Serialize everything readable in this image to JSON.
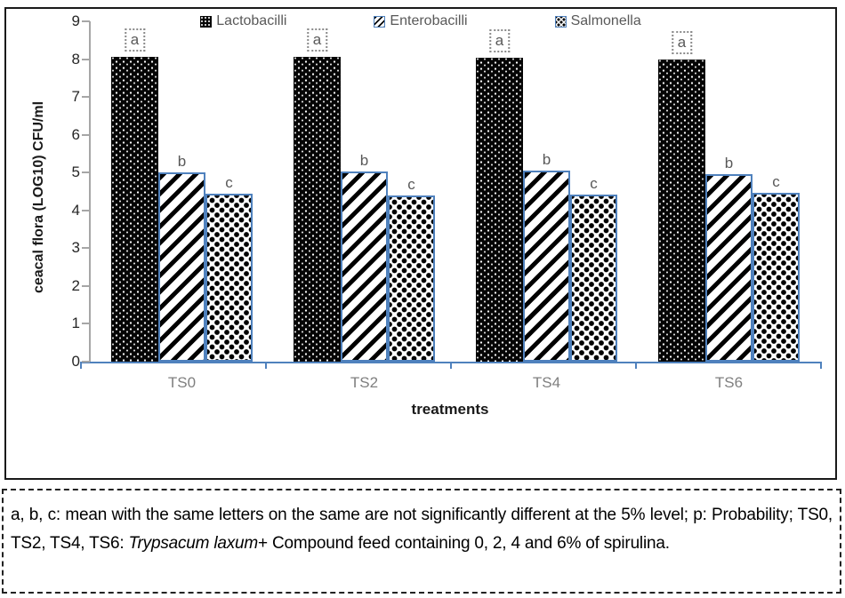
{
  "chart_data": {
    "type": "bar",
    "title": "",
    "categories": [
      "TS0",
      "TS2",
      "TS4",
      "TS6"
    ],
    "series": [
      {
        "name": "Lactobacilli",
        "letter": "a",
        "pattern": "pat-lacto",
        "values": [
          8.06,
          8.07,
          8.04,
          8.0
        ]
      },
      {
        "name": "Enterobacilli",
        "letter": "b",
        "pattern": "pat-entero",
        "values": [
          5.0,
          5.03,
          5.06,
          4.95
        ]
      },
      {
        "name": "Salmonella",
        "letter": "c",
        "pattern": "pat-salmo",
        "values": [
          4.44,
          4.4,
          4.42,
          4.46
        ]
      }
    ],
    "xlabel": "treatments",
    "ylabel": "ceacal flora (LOG10) CFU/ml",
    "ylim": [
      0,
      9
    ],
    "y_ticks": [
      0,
      1,
      2,
      3,
      4,
      5,
      6,
      7,
      8,
      9
    ],
    "grid": false,
    "legend_position": "top",
    "significance_letters": {
      "Lactobacilli": "a",
      "Enterobacilli": "b",
      "Salmonella": "c"
    }
  },
  "colors": {
    "axis_blue": "#4F81BD",
    "axis_gray": "#a6a6a6",
    "label_gray": "#595959",
    "bar_black": "#050505"
  },
  "caption": {
    "seg1": "a, b, c: mean with the same letters on the same  are not significantly different at the 5% level;  p: Probability; TS0, TS2, TS4, TS6: ",
    "italic": "Trypsacum laxum",
    "seg2": "+ Compound feed containing 0, 2, 4 and 6% of spirulina."
  }
}
